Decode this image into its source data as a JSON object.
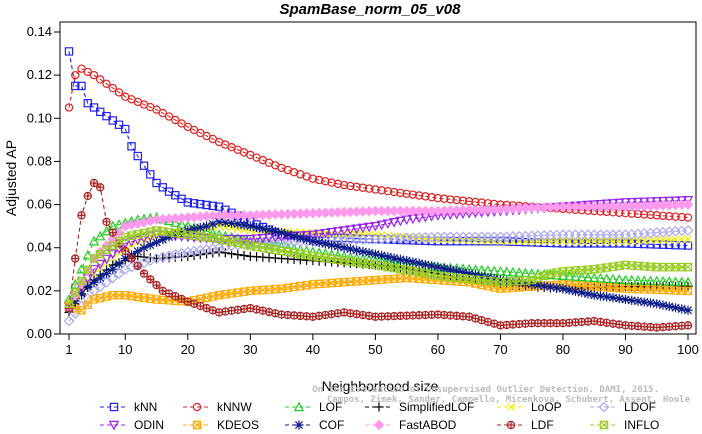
{
  "chart_data": {
    "type": "line",
    "title": "SpamBase_norm_05_v08",
    "xlabel": "Neighborhood size",
    "ylabel": "Adjusted AP",
    "xlim": [
      1,
      100
    ],
    "ylim": [
      0,
      0.14
    ],
    "x_ticks": [
      1,
      10,
      20,
      30,
      40,
      50,
      60,
      70,
      80,
      90,
      100
    ],
    "y_ticks": [
      0.0,
      0.02,
      0.04,
      0.06,
      0.08,
      0.1,
      0.12,
      0.14
    ],
    "y_tick_labels": [
      "0.00",
      "0.02",
      "0.04",
      "0.06",
      "0.08",
      "0.10",
      "0.12",
      "0.14"
    ],
    "grid": false,
    "legend_position": "bottom",
    "watermark": [
      "Campos, Zimek, Sander, Campello, Micenkova, Schubert, Assent, Houle",
      "On the Evaluation of Unsupervised Outlier Detection. DAMI, 2015."
    ],
    "series": [
      {
        "name": "kNN",
        "color": "#2222ee",
        "marker": "square",
        "points": [
          [
            1,
            0.131
          ],
          [
            2,
            0.115
          ],
          [
            3,
            0.115
          ],
          [
            4,
            0.107
          ],
          [
            6,
            0.103
          ],
          [
            8,
            0.099
          ],
          [
            10,
            0.095
          ],
          [
            11,
            0.087
          ],
          [
            13,
            0.078
          ],
          [
            15,
            0.07
          ],
          [
            17,
            0.066
          ],
          [
            20,
            0.061
          ],
          [
            25,
            0.059
          ],
          [
            30,
            0.052
          ],
          [
            35,
            0.046
          ],
          [
            40,
            0.045
          ],
          [
            50,
            0.044
          ],
          [
            60,
            0.043
          ],
          [
            70,
            0.043
          ],
          [
            80,
            0.042
          ],
          [
            90,
            0.042
          ],
          [
            100,
            0.041
          ]
        ]
      },
      {
        "name": "kNNW",
        "color": "#dd2222",
        "marker": "circle",
        "points": [
          [
            1,
            0.105
          ],
          [
            2,
            0.12
          ],
          [
            3,
            0.123
          ],
          [
            5,
            0.12
          ],
          [
            8,
            0.114
          ],
          [
            10,
            0.11
          ],
          [
            15,
            0.104
          ],
          [
            20,
            0.096
          ],
          [
            25,
            0.089
          ],
          [
            30,
            0.083
          ],
          [
            35,
            0.077
          ],
          [
            40,
            0.072
          ],
          [
            45,
            0.069
          ],
          [
            50,
            0.067
          ],
          [
            60,
            0.063
          ],
          [
            70,
            0.06
          ],
          [
            80,
            0.058
          ],
          [
            90,
            0.056
          ],
          [
            100,
            0.054
          ]
        ]
      },
      {
        "name": "LOF",
        "color": "#22cc22",
        "marker": "triangle-up",
        "points": [
          [
            1,
            0.016
          ],
          [
            3,
            0.03
          ],
          [
            5,
            0.043
          ],
          [
            8,
            0.05
          ],
          [
            12,
            0.053
          ],
          [
            15,
            0.054
          ],
          [
            20,
            0.05
          ],
          [
            25,
            0.046
          ],
          [
            30,
            0.043
          ],
          [
            40,
            0.038
          ],
          [
            50,
            0.034
          ],
          [
            60,
            0.031
          ],
          [
            70,
            0.029
          ],
          [
            80,
            0.027
          ],
          [
            90,
            0.025
          ],
          [
            100,
            0.024
          ]
        ]
      },
      {
        "name": "SimplifiedLOF",
        "color": "#000000",
        "marker": "plus",
        "points": [
          [
            1,
            0.01
          ],
          [
            3,
            0.018
          ],
          [
            5,
            0.025
          ],
          [
            8,
            0.032
          ],
          [
            12,
            0.036
          ],
          [
            15,
            0.035
          ],
          [
            20,
            0.036
          ],
          [
            25,
            0.038
          ],
          [
            30,
            0.036
          ],
          [
            40,
            0.034
          ],
          [
            50,
            0.032
          ],
          [
            60,
            0.028
          ],
          [
            70,
            0.023
          ],
          [
            80,
            0.021
          ],
          [
            90,
            0.022
          ],
          [
            100,
            0.022
          ]
        ]
      },
      {
        "name": "LoOP",
        "color": "#eeee00",
        "marker": "cross",
        "points": [
          [
            1,
            0.014
          ],
          [
            5,
            0.028
          ],
          [
            10,
            0.04
          ],
          [
            15,
            0.046
          ],
          [
            20,
            0.048
          ],
          [
            25,
            0.05
          ],
          [
            30,
            0.048
          ],
          [
            40,
            0.047
          ],
          [
            50,
            0.046
          ],
          [
            60,
            0.044
          ],
          [
            70,
            0.043
          ],
          [
            80,
            0.043
          ],
          [
            90,
            0.043
          ],
          [
            100,
            0.044
          ]
        ]
      },
      {
        "name": "LDOF",
        "color": "#aaaaee",
        "marker": "diamond",
        "points": [
          [
            1,
            0.006
          ],
          [
            5,
            0.02
          ],
          [
            10,
            0.03
          ],
          [
            15,
            0.035
          ],
          [
            20,
            0.038
          ],
          [
            25,
            0.04
          ],
          [
            30,
            0.042
          ],
          [
            40,
            0.043
          ],
          [
            50,
            0.044
          ],
          [
            60,
            0.045
          ],
          [
            70,
            0.045
          ],
          [
            80,
            0.046
          ],
          [
            90,
            0.046
          ],
          [
            100,
            0.048
          ]
        ]
      },
      {
        "name": "ODIN",
        "color": "#9922ee",
        "marker": "triangle-down",
        "points": [
          [
            1,
            0.013
          ],
          [
            5,
            0.03
          ],
          [
            10,
            0.042
          ],
          [
            15,
            0.046
          ],
          [
            20,
            0.045
          ],
          [
            25,
            0.044
          ],
          [
            30,
            0.044
          ],
          [
            40,
            0.046
          ],
          [
            50,
            0.05
          ],
          [
            55,
            0.053
          ],
          [
            60,
            0.055
          ],
          [
            70,
            0.057
          ],
          [
            80,
            0.059
          ],
          [
            90,
            0.061
          ],
          [
            100,
            0.062
          ]
        ]
      },
      {
        "name": "KDEOS",
        "color": "#ffaa00",
        "marker": "square-x",
        "points": [
          [
            1,
            0.013
          ],
          [
            3,
            0.011
          ],
          [
            5,
            0.016
          ],
          [
            8,
            0.018
          ],
          [
            10,
            0.018
          ],
          [
            15,
            0.016
          ],
          [
            20,
            0.015
          ],
          [
            25,
            0.018
          ],
          [
            30,
            0.02
          ],
          [
            35,
            0.021
          ],
          [
            40,
            0.023
          ],
          [
            45,
            0.024
          ],
          [
            50,
            0.025
          ],
          [
            55,
            0.026
          ],
          [
            60,
            0.025
          ],
          [
            65,
            0.024
          ],
          [
            70,
            0.021
          ],
          [
            75,
            0.022
          ],
          [
            80,
            0.023
          ],
          [
            90,
            0.021
          ],
          [
            100,
            0.02
          ]
        ]
      },
      {
        "name": "COF",
        "color": "#0a1a88",
        "marker": "asterisk",
        "points": [
          [
            1,
            0.012
          ],
          [
            4,
            0.022
          ],
          [
            8,
            0.03
          ],
          [
            10,
            0.035
          ],
          [
            13,
            0.04
          ],
          [
            17,
            0.045
          ],
          [
            20,
            0.048
          ],
          [
            23,
            0.05
          ],
          [
            25,
            0.052
          ],
          [
            28,
            0.051
          ],
          [
            30,
            0.05
          ],
          [
            35,
            0.047
          ],
          [
            40,
            0.043
          ],
          [
            45,
            0.04
          ],
          [
            50,
            0.037
          ],
          [
            55,
            0.034
          ],
          [
            60,
            0.031
          ],
          [
            65,
            0.028
          ],
          [
            70,
            0.025
          ],
          [
            75,
            0.023
          ],
          [
            80,
            0.021
          ],
          [
            85,
            0.018
          ],
          [
            90,
            0.016
          ],
          [
            95,
            0.014
          ],
          [
            100,
            0.011
          ]
        ]
      },
      {
        "name": "FastABOD",
        "color": "#ff99ee",
        "marker": "diamond-filled",
        "points": [
          [
            1,
            0.012
          ],
          [
            5,
            0.035
          ],
          [
            10,
            0.05
          ],
          [
            15,
            0.053
          ],
          [
            20,
            0.054
          ],
          [
            25,
            0.055
          ],
          [
            30,
            0.055
          ],
          [
            40,
            0.056
          ],
          [
            50,
            0.057
          ],
          [
            60,
            0.057
          ],
          [
            70,
            0.058
          ],
          [
            80,
            0.059
          ],
          [
            90,
            0.059
          ],
          [
            100,
            0.06
          ]
        ]
      },
      {
        "name": "LDF",
        "color": "#aa2222",
        "marker": "circle-plus",
        "points": [
          [
            1,
            0.012
          ],
          [
            2,
            0.035
          ],
          [
            3,
            0.055
          ],
          [
            4,
            0.064
          ],
          [
            5,
            0.07
          ],
          [
            6,
            0.068
          ],
          [
            7,
            0.052
          ],
          [
            9,
            0.042
          ],
          [
            11,
            0.035
          ],
          [
            13,
            0.028
          ],
          [
            16,
            0.02
          ],
          [
            20,
            0.015
          ],
          [
            25,
            0.01
          ],
          [
            30,
            0.012
          ],
          [
            35,
            0.009
          ],
          [
            40,
            0.008
          ],
          [
            45,
            0.01
          ],
          [
            50,
            0.008
          ],
          [
            60,
            0.009
          ],
          [
            65,
            0.008
          ],
          [
            70,
            0.004
          ],
          [
            75,
            0.005
          ],
          [
            80,
            0.005
          ],
          [
            85,
            0.006
          ],
          [
            90,
            0.004
          ],
          [
            95,
            0.003
          ],
          [
            100,
            0.004
          ]
        ]
      },
      {
        "name": "INFLO",
        "color": "#99cc22",
        "marker": "hourglass",
        "points": [
          [
            1,
            0.014
          ],
          [
            5,
            0.035
          ],
          [
            10,
            0.045
          ],
          [
            15,
            0.048
          ],
          [
            20,
            0.046
          ],
          [
            25,
            0.044
          ],
          [
            30,
            0.041
          ],
          [
            40,
            0.036
          ],
          [
            50,
            0.032
          ],
          [
            60,
            0.027
          ],
          [
            70,
            0.024
          ],
          [
            75,
            0.025
          ],
          [
            78,
            0.028
          ],
          [
            80,
            0.029
          ],
          [
            85,
            0.03
          ],
          [
            90,
            0.032
          ],
          [
            95,
            0.031
          ],
          [
            100,
            0.031
          ]
        ]
      }
    ]
  }
}
